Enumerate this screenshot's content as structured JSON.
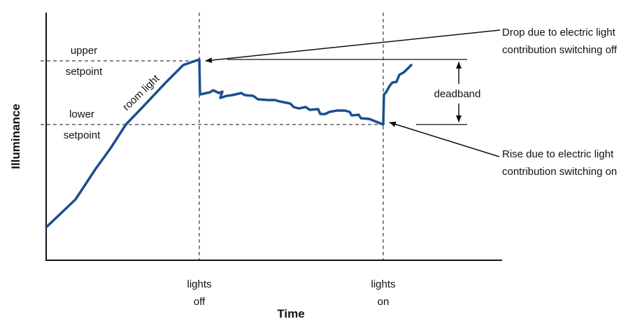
{
  "chart_data": {
    "type": "line",
    "xlabel": "Time",
    "ylabel": "Illuminance",
    "colors": {
      "curve": "#1b4f8f",
      "axes": "#111111"
    },
    "x_ticks": [
      {
        "line1": "lights",
        "line2": "off"
      },
      {
        "line1": "lights",
        "line2": "on"
      }
    ],
    "y_levels": [
      {
        "line1": "upper",
        "line2": "setpoint"
      },
      {
        "line1": "lower",
        "line2": "setpoint"
      }
    ],
    "labels": {
      "curve": "room light",
      "deadband": "deadband",
      "drop_line1": "Drop due to electric light",
      "drop_line2": "contribution switching off",
      "rise_line1": "Rise due to electric light",
      "rise_line2": "contribution switching on"
    }
  }
}
